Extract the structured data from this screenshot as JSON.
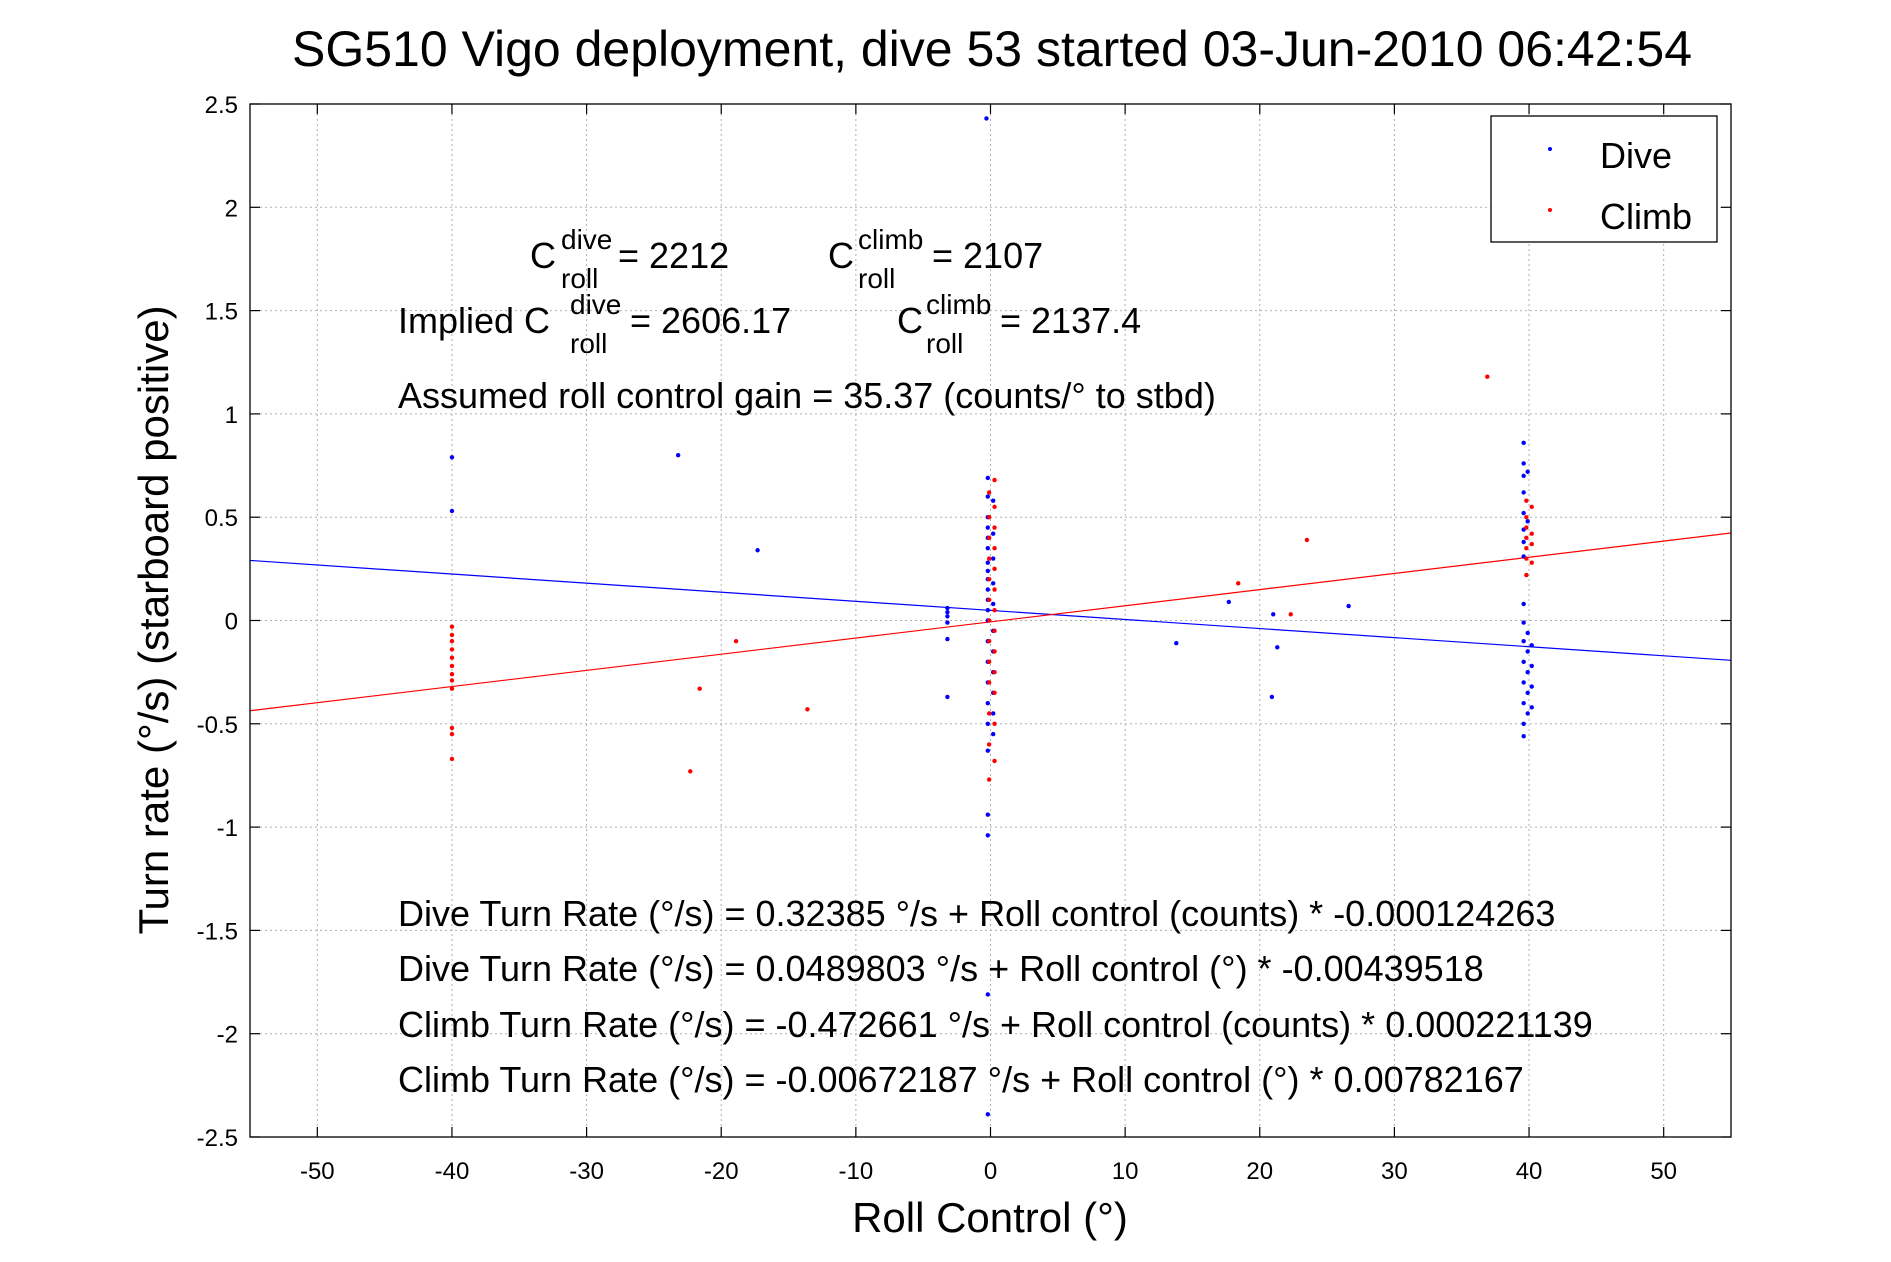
{
  "chart_data": {
    "type": "scatter",
    "title": "SG510 Vigo deployment, dive 53 started 03-Jun-2010 06:42:54",
    "xlabel": "Roll Control (°)",
    "ylabel": "Turn rate (°/s)  (starboard positive)",
    "xlim": [
      -55,
      55
    ],
    "ylim": [
      -2.5,
      2.5
    ],
    "xticks": [
      -50,
      -40,
      -30,
      -20,
      -10,
      0,
      10,
      20,
      30,
      40,
      50
    ],
    "yticks": [
      2.5,
      2,
      1.5,
      1,
      0.5,
      0,
      -0.5,
      -1,
      -1.5,
      -2,
      -2.5
    ],
    "grid": true,
    "legend_position": "top-right",
    "series": [
      {
        "name": "Dive",
        "color": "#0000ff",
        "points": [
          [
            -0.3,
            2.43
          ],
          [
            -40,
            0.79
          ],
          [
            -40,
            0.53
          ],
          [
            -23.2,
            0.8
          ],
          [
            -17.3,
            0.34
          ],
          [
            -3.2,
            0.06
          ],
          [
            -3.2,
            0.04
          ],
          [
            -3.2,
            0.02
          ],
          [
            -3.2,
            -0.01
          ],
          [
            -3.2,
            -0.09
          ],
          [
            -3.2,
            -0.37
          ],
          [
            -0.2,
            0.69
          ],
          [
            -0.2,
            0.6
          ],
          [
            -0.2,
            0.5
          ],
          [
            -0.2,
            0.45
          ],
          [
            -0.2,
            0.4
          ],
          [
            -0.2,
            0.35
          ],
          [
            -0.2,
            0.28
          ],
          [
            -0.2,
            0.24
          ],
          [
            -0.2,
            0.2
          ],
          [
            -0.2,
            0.15
          ],
          [
            -0.2,
            0.1
          ],
          [
            -0.2,
            0.05
          ],
          [
            -0.2,
            0.0
          ],
          [
            -0.2,
            -0.1
          ],
          [
            -0.2,
            -0.2
          ],
          [
            -0.2,
            -0.3
          ],
          [
            -0.2,
            -0.4
          ],
          [
            -0.2,
            -0.5
          ],
          [
            -0.2,
            -0.63
          ],
          [
            -0.2,
            -0.94
          ],
          [
            -0.2,
            -1.04
          ],
          [
            -0.2,
            -1.81
          ],
          [
            -0.2,
            -2.39
          ],
          [
            0.2,
            0.58
          ],
          [
            0.2,
            0.42
          ],
          [
            0.2,
            0.3
          ],
          [
            0.2,
            0.18
          ],
          [
            0.2,
            0.08
          ],
          [
            0.2,
            -0.05
          ],
          [
            0.2,
            -0.15
          ],
          [
            0.2,
            -0.25
          ],
          [
            0.2,
            -0.35
          ],
          [
            0.2,
            -0.45
          ],
          [
            0.2,
            -0.55
          ],
          [
            13.8,
            -0.11
          ],
          [
            17.7,
            0.09
          ],
          [
            21.0,
            0.03
          ],
          [
            21.3,
            -0.13
          ],
          [
            20.9,
            -0.37
          ],
          [
            26.6,
            0.07
          ],
          [
            39.6,
            0.86
          ],
          [
            39.6,
            0.76
          ],
          [
            39.6,
            0.7
          ],
          [
            39.6,
            0.62
          ],
          [
            39.6,
            0.52
          ],
          [
            39.6,
            0.44
          ],
          [
            39.6,
            0.38
          ],
          [
            39.6,
            0.31
          ],
          [
            39.6,
            0.08
          ],
          [
            39.6,
            -0.01
          ],
          [
            39.6,
            -0.1
          ],
          [
            39.6,
            -0.2
          ],
          [
            39.6,
            -0.3
          ],
          [
            39.6,
            -0.4
          ],
          [
            39.6,
            -0.5
          ],
          [
            39.6,
            -0.56
          ],
          [
            39.9,
            0.72
          ],
          [
            39.9,
            0.48
          ],
          [
            39.9,
            -0.06
          ],
          [
            39.9,
            -0.15
          ],
          [
            39.9,
            -0.25
          ],
          [
            39.9,
            -0.35
          ],
          [
            39.9,
            -0.45
          ],
          [
            40.2,
            -0.12
          ],
          [
            40.2,
            -0.22
          ],
          [
            40.2,
            -0.32
          ],
          [
            40.2,
            -0.42
          ]
        ]
      },
      {
        "name": "Climb",
        "color": "#ff0000",
        "points": [
          [
            -40,
            -0.03
          ],
          [
            -40,
            -0.07
          ],
          [
            -40,
            -0.1
          ],
          [
            -40,
            -0.14
          ],
          [
            -40,
            -0.18
          ],
          [
            -40,
            -0.22
          ],
          [
            -40,
            -0.26
          ],
          [
            -40,
            -0.29
          ],
          [
            -40,
            -0.33
          ],
          [
            -40,
            -0.52
          ],
          [
            -40,
            -0.55
          ],
          [
            -40,
            -0.67
          ],
          [
            -22.3,
            -0.73
          ],
          [
            -21.6,
            -0.33
          ],
          [
            -18.9,
            -0.1
          ],
          [
            -13.6,
            -0.43
          ],
          [
            -0.1,
            0.62
          ],
          [
            -0.1,
            0.5
          ],
          [
            -0.1,
            0.4
          ],
          [
            -0.1,
            0.3
          ],
          [
            -0.1,
            0.2
          ],
          [
            -0.1,
            0.1
          ],
          [
            -0.1,
            0.0
          ],
          [
            -0.1,
            -0.1
          ],
          [
            -0.1,
            -0.2
          ],
          [
            -0.1,
            -0.3
          ],
          [
            -0.1,
            -0.45
          ],
          [
            -0.1,
            -0.6
          ],
          [
            -0.1,
            -0.77
          ],
          [
            0.3,
            0.68
          ],
          [
            0.3,
            0.55
          ],
          [
            0.3,
            0.45
          ],
          [
            0.3,
            0.35
          ],
          [
            0.3,
            0.25
          ],
          [
            0.3,
            0.15
          ],
          [
            0.3,
            0.05
          ],
          [
            0.3,
            -0.05
          ],
          [
            0.3,
            -0.15
          ],
          [
            0.3,
            -0.25
          ],
          [
            0.3,
            -0.35
          ],
          [
            0.3,
            -0.5
          ],
          [
            0.3,
            -0.68
          ],
          [
            18.4,
            0.18
          ],
          [
            22.3,
            0.03
          ],
          [
            23.5,
            0.39
          ],
          [
            36.9,
            1.18
          ],
          [
            39.8,
            0.58
          ],
          [
            39.8,
            0.5
          ],
          [
            39.8,
            0.45
          ],
          [
            39.8,
            0.4
          ],
          [
            39.8,
            0.35
          ],
          [
            39.8,
            0.3
          ],
          [
            39.8,
            0.22
          ],
          [
            40.2,
            0.55
          ],
          [
            40.2,
            0.42
          ],
          [
            40.2,
            0.37
          ],
          [
            40.2,
            0.28
          ]
        ]
      }
    ],
    "fits": [
      {
        "name": "Dive",
        "color": "#0000ff",
        "intercept": 0.0489803,
        "slope": -0.00439518
      },
      {
        "name": "Climb",
        "color": "#ff0000",
        "intercept": -0.00672187,
        "slope": 0.00782167
      }
    ],
    "annotations": {
      "c_roll_line": {
        "c1_base": "C",
        "c1_sup": "dive",
        "c1_sub": "roll",
        "c1_value": " = 2212",
        "c2_base": "C",
        "c2_sup": "climb",
        "c2_sub": "roll",
        "c2_value": " = 2107"
      },
      "implied_line": {
        "prefix": "Implied C",
        "c1_sup": "dive",
        "c1_sub": "roll",
        "c1_value": " = 2606.17",
        "c2_base": "C",
        "c2_sup": "climb",
        "c2_sub": "roll",
        "c2_value": " = 2137.4"
      },
      "gain_line": "Assumed roll control gain = 35.37 (counts/° to stbd)",
      "equations": [
        "Dive Turn Rate (°/s) = 0.32385 °/s + Roll control (counts) * -0.000124263",
        "Dive Turn Rate (°/s) = 0.0489803 °/s + Roll control (°) * -0.00439518",
        "Climb Turn Rate (°/s) = -0.472661 °/s + Roll control (counts) * 0.000221139",
        "Climb Turn Rate (°/s) = -0.00672187 °/s + Roll control (°) * 0.00782167"
      ]
    }
  }
}
